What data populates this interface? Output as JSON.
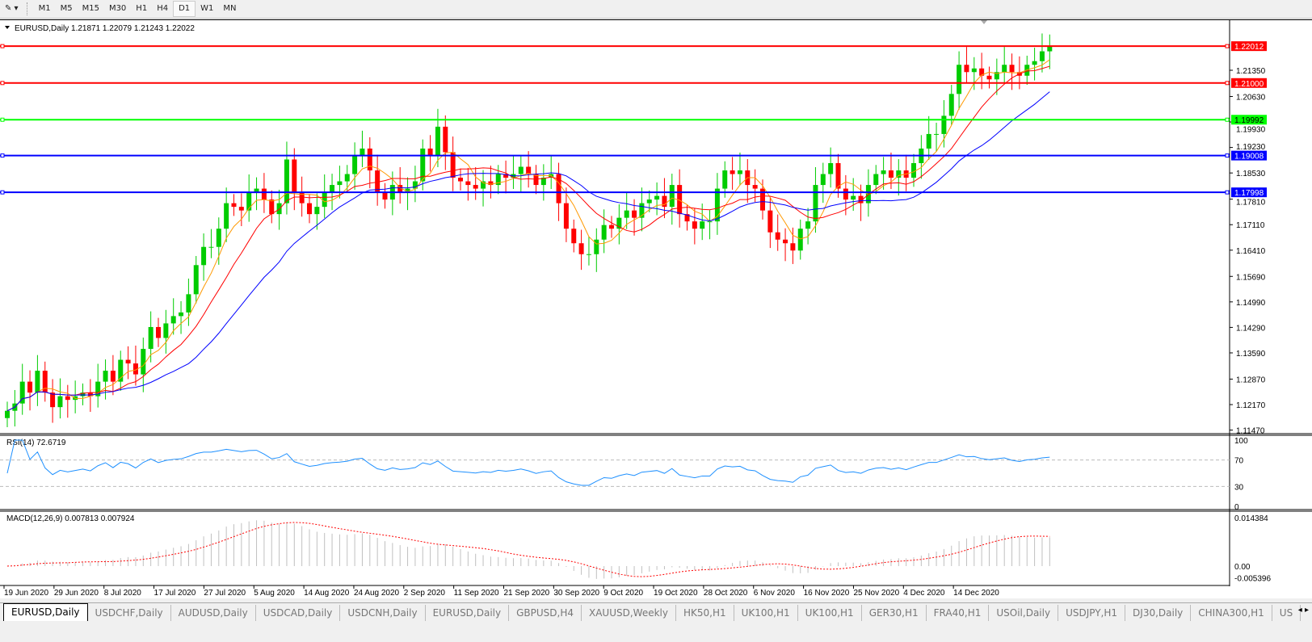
{
  "toolbar": {
    "timeframes": [
      "M1",
      "M5",
      "M15",
      "M30",
      "H1",
      "H4",
      "D1",
      "W1",
      "MN"
    ],
    "active": "D1"
  },
  "chart": {
    "symbol_info": "EURUSD,Daily  1.21871 1.22079 1.21243 1.22022",
    "price_ticks": [
      "1.21350",
      "1.20630",
      "1.19930",
      "1.19230",
      "1.18530",
      "1.17810",
      "1.17110",
      "1.16410",
      "1.15690",
      "1.14990",
      "1.14290",
      "1.13590",
      "1.12870",
      "1.12170",
      "1.11470"
    ],
    "hlines": [
      {
        "label": "1.22012",
        "value": 1.22012,
        "color": "#ff0000"
      },
      {
        "label": "1.21000",
        "value": 1.21,
        "color": "#ff0000"
      },
      {
        "label": "1.19992",
        "value": 1.19992,
        "color": "#00ff00"
      },
      {
        "label": "1.19008",
        "value": 1.19008,
        "color": "#0000ff"
      },
      {
        "label": "1.17998",
        "value": 1.17998,
        "color": "#0000ff"
      }
    ],
    "date_ticks": [
      "19 Jun 2020",
      "29 Jun 2020",
      "8 Jul 2020",
      "17 Jul 2020",
      "27 Jul 2020",
      "5 Aug 2020",
      "14 Aug 2020",
      "24 Aug 2020",
      "2 Sep 2020",
      "11 Sep 2020",
      "21 Sep 2020",
      "30 Sep 2020",
      "9 Oct 2020",
      "19 Oct 2020",
      "28 Oct 2020",
      "6 Nov 2020",
      "16 Nov 2020",
      "25 Nov 2020",
      "4 Dec 2020",
      "14 Dec 2020"
    ],
    "closes": [
      1.12,
      1.122,
      1.128,
      1.125,
      1.131,
      1.125,
      1.121,
      1.124,
      1.123,
      1.124,
      1.125,
      1.124,
      1.128,
      1.131,
      1.128,
      1.134,
      1.133,
      1.13,
      1.137,
      1.143,
      1.14,
      1.144,
      1.146,
      1.147,
      1.152,
      1.16,
      1.165,
      1.165,
      1.17,
      1.177,
      1.176,
      1.175,
      1.18,
      1.181,
      1.178,
      1.174,
      1.177,
      1.189,
      1.18,
      1.177,
      1.174,
      1.176,
      1.18,
      1.182,
      1.183,
      1.185,
      1.19,
      1.192,
      1.186,
      1.18,
      1.178,
      1.182,
      1.18,
      1.181,
      1.183,
      1.192,
      1.19,
      1.198,
      1.191,
      1.184,
      1.183,
      1.182,
      1.181,
      1.183,
      1.182,
      1.185,
      1.184,
      1.185,
      1.187,
      1.185,
      1.182,
      1.184,
      1.185,
      1.177,
      1.17,
      1.166,
      1.163,
      1.163,
      1.167,
      1.171,
      1.17,
      1.173,
      1.175,
      1.173,
      1.177,
      1.178,
      1.179,
      1.176,
      1.182,
      1.174,
      1.172,
      1.17,
      1.172,
      1.172,
      1.181,
      1.186,
      1.185,
      1.186,
      1.182,
      1.181,
      1.175,
      1.169,
      1.167,
      1.166,
      1.164,
      1.17,
      1.172,
      1.182,
      1.185,
      1.188,
      1.181,
      1.178,
      1.179,
      1.177,
      1.182,
      1.185,
      1.186,
      1.184,
      1.186,
      1.184,
      1.188,
      1.192,
      1.196,
      1.196,
      1.201,
      1.207,
      1.215,
      1.213,
      1.214,
      1.212,
      1.211,
      1.213,
      1.215,
      1.213,
      1.212,
      1.215,
      1.216,
      1.2187,
      1.22022
    ],
    "ma_colors": {
      "fast": "#ff9900",
      "mid": "#ff0000",
      "slow": "#0000ff"
    },
    "bull_color": "#00cc00",
    "bear_color": "#ff0000"
  },
  "rsi": {
    "label": "RSI(14) 72.6719",
    "ticks": [
      "100",
      "70",
      "30",
      "0"
    ],
    "color": "#1e90ff"
  },
  "macd": {
    "label": "MACD(12,26,9) 0.007813 0.007924",
    "ticks": [
      "0.014384",
      "0.00",
      "-0.005396"
    ]
  },
  "tabs": [
    "EURUSD,Daily",
    "USDCHF,Daily",
    "AUDUSD,Daily",
    "USDCAD,Daily",
    "USDCNH,Daily",
    "EURUSD,Daily",
    "GBPUSD,H4",
    "XAUUSD,Weekly",
    "HK50,H1",
    "UK100,H1",
    "UK100,H1",
    "GER30,H1",
    "FRA40,H1",
    "USOil,Daily",
    "USDJPY,H1",
    "DJ30,Daily",
    "CHINA300,H1",
    "US"
  ]
}
